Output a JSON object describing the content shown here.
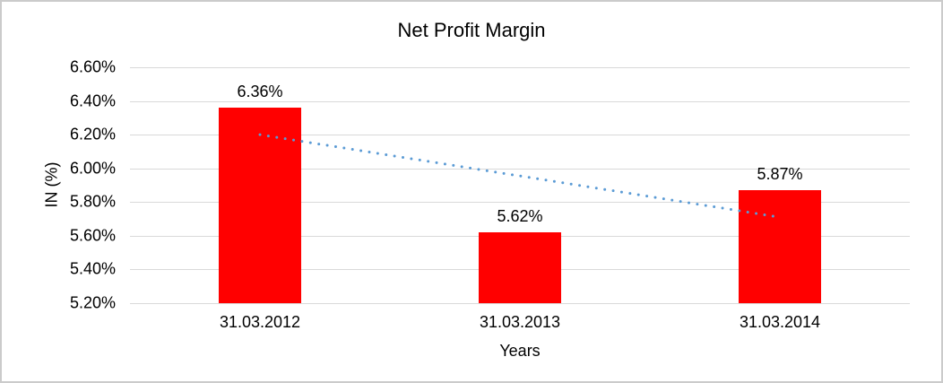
{
  "window": {
    "background": "#ffffff",
    "border_color": "#cbcbcb"
  },
  "chart_data": {
    "type": "bar",
    "title": "Net Profit Margin",
    "xlabel": "Years",
    "ylabel": "IN (%)",
    "categories": [
      "31.03.2012",
      "31.03.2013",
      "31.03.2014"
    ],
    "values": [
      6.36,
      5.62,
      5.87
    ],
    "data_labels": [
      "6.36%",
      "5.62%",
      "5.87%"
    ],
    "ylim": [
      5.2,
      6.6
    ],
    "y_tick_step": 0.2,
    "y_tick_labels": [
      "5.20%",
      "5.40%",
      "5.60%",
      "5.80%",
      "6.00%",
      "6.20%",
      "6.40%",
      "6.60%"
    ],
    "grid": true,
    "legend": "none",
    "bar_color": "#ff0000",
    "gridline_color": "#d9d9d9",
    "text_color": "#000000",
    "trendline": {
      "type": "linear",
      "style": "dotted",
      "color": "#5b9bd5",
      "start_value": 6.2,
      "end_value": 5.71
    }
  }
}
